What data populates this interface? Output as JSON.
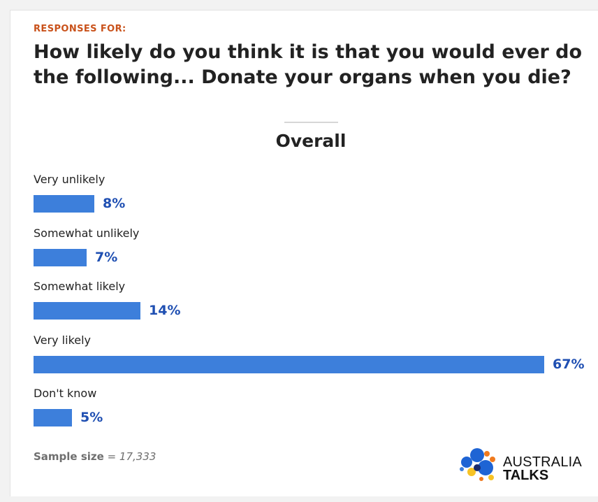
{
  "header": {
    "eyebrow": "RESPONSES FOR:",
    "title": "How likely do you think it is that you would ever do the following... Donate your organs when you die?"
  },
  "section": {
    "title": "Overall"
  },
  "chart_data": {
    "type": "bar",
    "orientation": "horizontal",
    "categories": [
      "Very unlikely",
      "Somewhat unlikely",
      "Somewhat likely",
      "Very likely",
      "Don't know"
    ],
    "values": [
      8,
      7,
      14,
      67,
      5
    ],
    "value_labels": [
      "8%",
      "7%",
      "14%",
      "67%",
      "5%"
    ],
    "unit": "%",
    "xlim": [
      0,
      67
    ],
    "grid": false,
    "legend": "none",
    "bar_color": "#3d7fdb",
    "value_color": "#1f4fb2"
  },
  "footer": {
    "sample_label": "Sample size",
    "sample_value": "= 17,333"
  },
  "logo": {
    "line1": "AUSTRALIA",
    "line2": "TALKS",
    "colors": [
      "#1e64d4",
      "#f7c325",
      "#f07a1e",
      "#1a2a6c",
      "#3d7fdb"
    ]
  },
  "colors": {
    "accent": "#c9521b",
    "bar": "#3d7fdb",
    "value_text": "#1f4fb2"
  }
}
